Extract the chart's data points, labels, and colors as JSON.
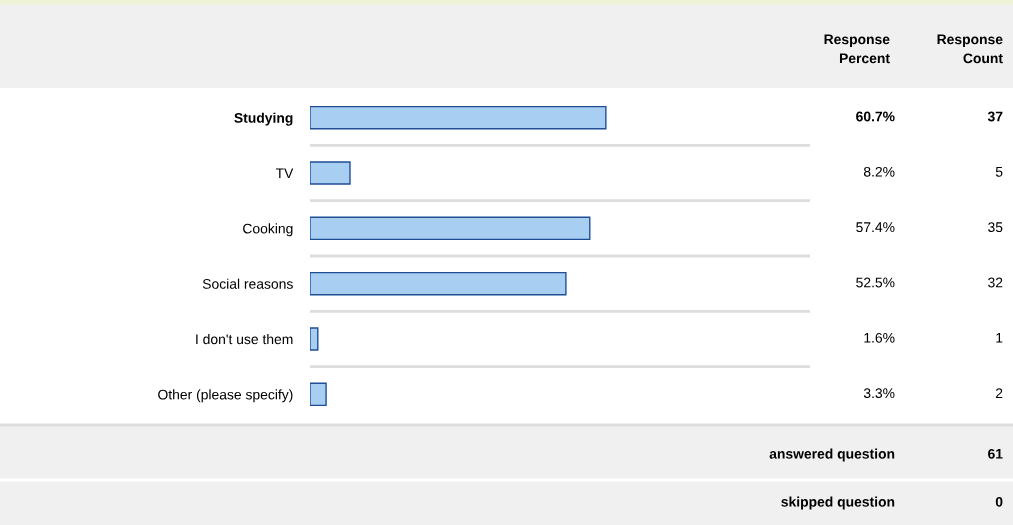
{
  "chart_data": {
    "type": "bar",
    "orientation": "horizontal",
    "categories": [
      "Studying",
      "TV",
      "Cooking",
      "Social reasons",
      "I don't use them",
      "Other (please specify)"
    ],
    "values": [
      60.7,
      8.2,
      57.4,
      52.5,
      1.6,
      3.3
    ],
    "value_labels": [
      "60.7%",
      "8.2%",
      "57.4%",
      "52.5%",
      "1.6%",
      "3.3%"
    ],
    "color": "#a8cff2",
    "annotations": [
      "Response Percent",
      "Response Count",
      "37",
      "5",
      "35",
      "32",
      "1",
      "2",
      "answered question",
      "61",
      "skipped question",
      "0"
    ]
  }
}
